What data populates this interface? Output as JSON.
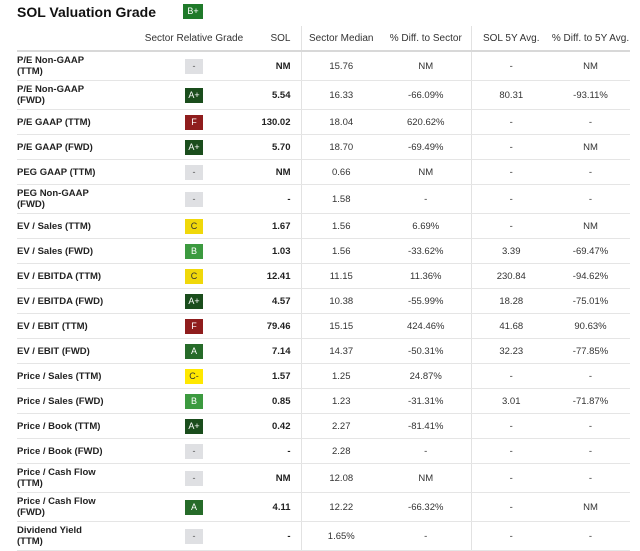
{
  "header": {
    "title": "SOL Valuation Grade",
    "overall_grade": "B+"
  },
  "columns": [
    "",
    "Sector Relative Grade",
    "SOL",
    "Sector Median",
    "% Diff. to Sector",
    "SOL 5Y Avg.",
    "% Diff. to 5Y Avg."
  ],
  "rows": [
    {
      "metric": "P/E Non-GAAP (TTM)",
      "grade": "-",
      "sol": "NM",
      "median": "15.76",
      "diff_sector": "NM",
      "avg5y": "-",
      "diff_5y": "NM"
    },
    {
      "metric": "P/E Non-GAAP (FWD)",
      "grade": "A+",
      "sol": "5.54",
      "median": "16.33",
      "diff_sector": "-66.09%",
      "avg5y": "80.31",
      "diff_5y": "-93.11%"
    },
    {
      "metric": "P/E GAAP (TTM)",
      "grade": "F",
      "sol": "130.02",
      "median": "18.04",
      "diff_sector": "620.62%",
      "avg5y": "-",
      "diff_5y": "-"
    },
    {
      "metric": "P/E GAAP (FWD)",
      "grade": "A+",
      "sol": "5.70",
      "median": "18.70",
      "diff_sector": "-69.49%",
      "avg5y": "-",
      "diff_5y": "NM"
    },
    {
      "metric": "PEG GAAP (TTM)",
      "grade": "-",
      "sol": "NM",
      "median": "0.66",
      "diff_sector": "NM",
      "avg5y": "-",
      "diff_5y": "-"
    },
    {
      "metric": "PEG Non-GAAP (FWD)",
      "grade": "-",
      "sol": "-",
      "median": "1.58",
      "diff_sector": "-",
      "avg5y": "-",
      "diff_5y": "-"
    },
    {
      "metric": "EV / Sales (TTM)",
      "grade": "C",
      "sol": "1.67",
      "median": "1.56",
      "diff_sector": "6.69%",
      "avg5y": "-",
      "diff_5y": "NM"
    },
    {
      "metric": "EV / Sales (FWD)",
      "grade": "B",
      "sol": "1.03",
      "median": "1.56",
      "diff_sector": "-33.62%",
      "avg5y": "3.39",
      "diff_5y": "-69.47%"
    },
    {
      "metric": "EV / EBITDA (TTM)",
      "grade": "C",
      "sol": "12.41",
      "median": "11.15",
      "diff_sector": "11.36%",
      "avg5y": "230.84",
      "diff_5y": "-94.62%"
    },
    {
      "metric": "EV / EBITDA (FWD)",
      "grade": "A+",
      "sol": "4.57",
      "median": "10.38",
      "diff_sector": "-55.99%",
      "avg5y": "18.28",
      "diff_5y": "-75.01%"
    },
    {
      "metric": "EV / EBIT (TTM)",
      "grade": "F",
      "sol": "79.46",
      "median": "15.15",
      "diff_sector": "424.46%",
      "avg5y": "41.68",
      "diff_5y": "90.63%"
    },
    {
      "metric": "EV / EBIT (FWD)",
      "grade": "A",
      "sol": "7.14",
      "median": "14.37",
      "diff_sector": "-50.31%",
      "avg5y": "32.23",
      "diff_5y": "-77.85%"
    },
    {
      "metric": "Price / Sales (TTM)",
      "grade": "C-",
      "sol": "1.57",
      "median": "1.25",
      "diff_sector": "24.87%",
      "avg5y": "-",
      "diff_5y": "-"
    },
    {
      "metric": "Price / Sales (FWD)",
      "grade": "B",
      "sol": "0.85",
      "median": "1.23",
      "diff_sector": "-31.31%",
      "avg5y": "3.01",
      "diff_5y": "-71.87%"
    },
    {
      "metric": "Price / Book (TTM)",
      "grade": "A+",
      "sol": "0.42",
      "median": "2.27",
      "diff_sector": "-81.41%",
      "avg5y": "-",
      "diff_5y": "-"
    },
    {
      "metric": "Price / Book (FWD)",
      "grade": "-",
      "sol": "-",
      "median": "2.28",
      "diff_sector": "-",
      "avg5y": "-",
      "diff_5y": "-"
    },
    {
      "metric": "Price / Cash Flow (TTM)",
      "grade": "-",
      "sol": "NM",
      "median": "12.08",
      "diff_sector": "NM",
      "avg5y": "-",
      "diff_5y": "-"
    },
    {
      "metric": "Price / Cash Flow (FWD)",
      "grade": "A",
      "sol": "4.11",
      "median": "12.22",
      "diff_sector": "-66.32%",
      "avg5y": "-",
      "diff_5y": "NM"
    },
    {
      "metric": "Dividend Yield (TTM)",
      "grade": "-",
      "sol": "-",
      "median": "1.65%",
      "diff_sector": "-",
      "avg5y": "-",
      "diff_5y": "-"
    }
  ],
  "row_layout": {
    "metric_break": [
      true,
      true,
      false,
      false,
      false,
      true,
      false,
      false,
      false,
      false,
      false,
      false,
      false,
      false,
      false,
      false,
      true,
      true,
      true
    ]
  },
  "grade_colors": {
    "A+": "#1a4d1c",
    "A": "#266b29",
    "B+": "#1f7a2a",
    "B": "#3c9a3f",
    "C": "#f0d80a",
    "C-": "#ffe800",
    "F": "#8f1d1d",
    "-": "#dfe0e3"
  }
}
